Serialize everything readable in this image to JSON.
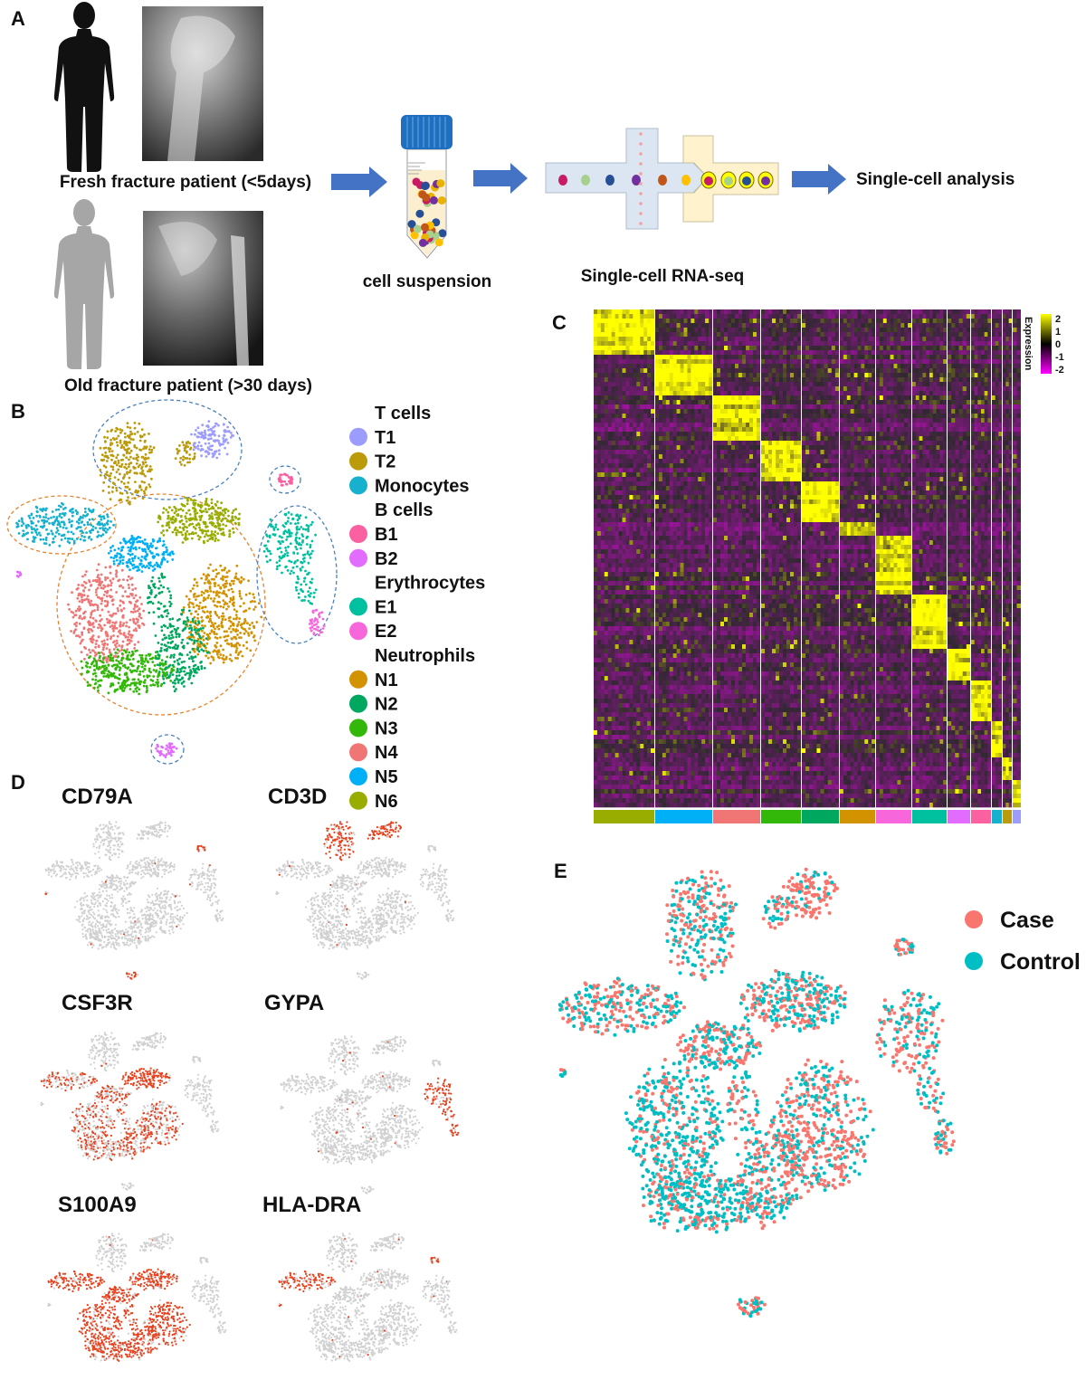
{
  "panel_labels": {
    "a": "A",
    "b": "B",
    "c": "C",
    "d": "D",
    "e": "E"
  },
  "panel_a": {
    "fresh_label": "Fresh fracture patient (<5days)",
    "old_label": "Old fracture patient (>30 days)",
    "tube_label": "cell suspension",
    "seq_label": "Single-cell RNA-seq",
    "analysis_label": "Single-cell analysis",
    "arrow_color": "#4472c4"
  },
  "chart_data": [
    {
      "panel": "B",
      "type": "scatter",
      "legend": [
        {
          "heading": "T cells"
        },
        {
          "label": "T1",
          "color": "#9c9cff"
        },
        {
          "label": "T2",
          "color": "#bb9a0c"
        },
        {
          "label": "Monocytes",
          "color": "#17b1cf"
        },
        {
          "heading": "B cells"
        },
        {
          "label": "B1",
          "color": "#fb61a0"
        },
        {
          "label": "B2",
          "color": "#e26cff"
        },
        {
          "heading": "Erythrocytes"
        },
        {
          "label": "E1",
          "color": "#00c19f"
        },
        {
          "label": "E2",
          "color": "#f866dc"
        },
        {
          "heading": "Neutrophils"
        },
        {
          "label": "N1",
          "color": "#d39200"
        },
        {
          "label": "N2",
          "color": "#00a85f"
        },
        {
          "label": "N3",
          "color": "#33b80a"
        },
        {
          "label": "N4",
          "color": "#ef7675"
        },
        {
          "label": "N5",
          "color": "#00b0f6"
        },
        {
          "label": "N6",
          "color": "#98ad00"
        }
      ],
      "outline_colors": {
        "lymphoid": "#4a7fc0",
        "myeloid": "#e8822a"
      }
    },
    {
      "panel": "C",
      "type": "heatmap",
      "cluster_order": [
        "N6",
        "N5",
        "N4",
        "N3",
        "N2",
        "N1",
        "E2",
        "E1",
        "B2",
        "B1",
        "Monocytes",
        "T2",
        "T1"
      ],
      "colorbar_label": "Expression",
      "colorbar_ticks": [
        "2",
        "1",
        "0",
        "-1",
        "-2"
      ],
      "range": [
        -2,
        2
      ],
      "colorscale": {
        "low": "#ff00ff",
        "mid": "#000000",
        "high": "#ffff00"
      }
    },
    {
      "panel": "D",
      "type": "scatter",
      "features": [
        {
          "gene": "CD79A",
          "expressed_in": [
            "B1",
            "B2"
          ]
        },
        {
          "gene": "CD3D",
          "expressed_in": [
            "T1",
            "T2"
          ]
        },
        {
          "gene": "CSF3R",
          "expressed_in": [
            "N1",
            "N2",
            "N3",
            "N4",
            "N5",
            "N6",
            "Monocytes"
          ]
        },
        {
          "gene": "GYPA",
          "expressed_in": [
            "E1",
            "E2"
          ]
        },
        {
          "gene": "S100A9",
          "expressed_in": [
            "N1",
            "N2",
            "N3",
            "N4",
            "N5",
            "N6",
            "Monocytes"
          ]
        },
        {
          "gene": "HLA-DRA",
          "expressed_in": [
            "Monocytes",
            "B1",
            "B2"
          ]
        }
      ],
      "colors": {
        "low": "#d0d0d0",
        "high": "#e8401c"
      }
    },
    {
      "panel": "E",
      "type": "scatter",
      "legend": [
        {
          "label": "Case",
          "color": "#f8766d"
        },
        {
          "label": "Control",
          "color": "#00bfc4"
        }
      ]
    }
  ]
}
